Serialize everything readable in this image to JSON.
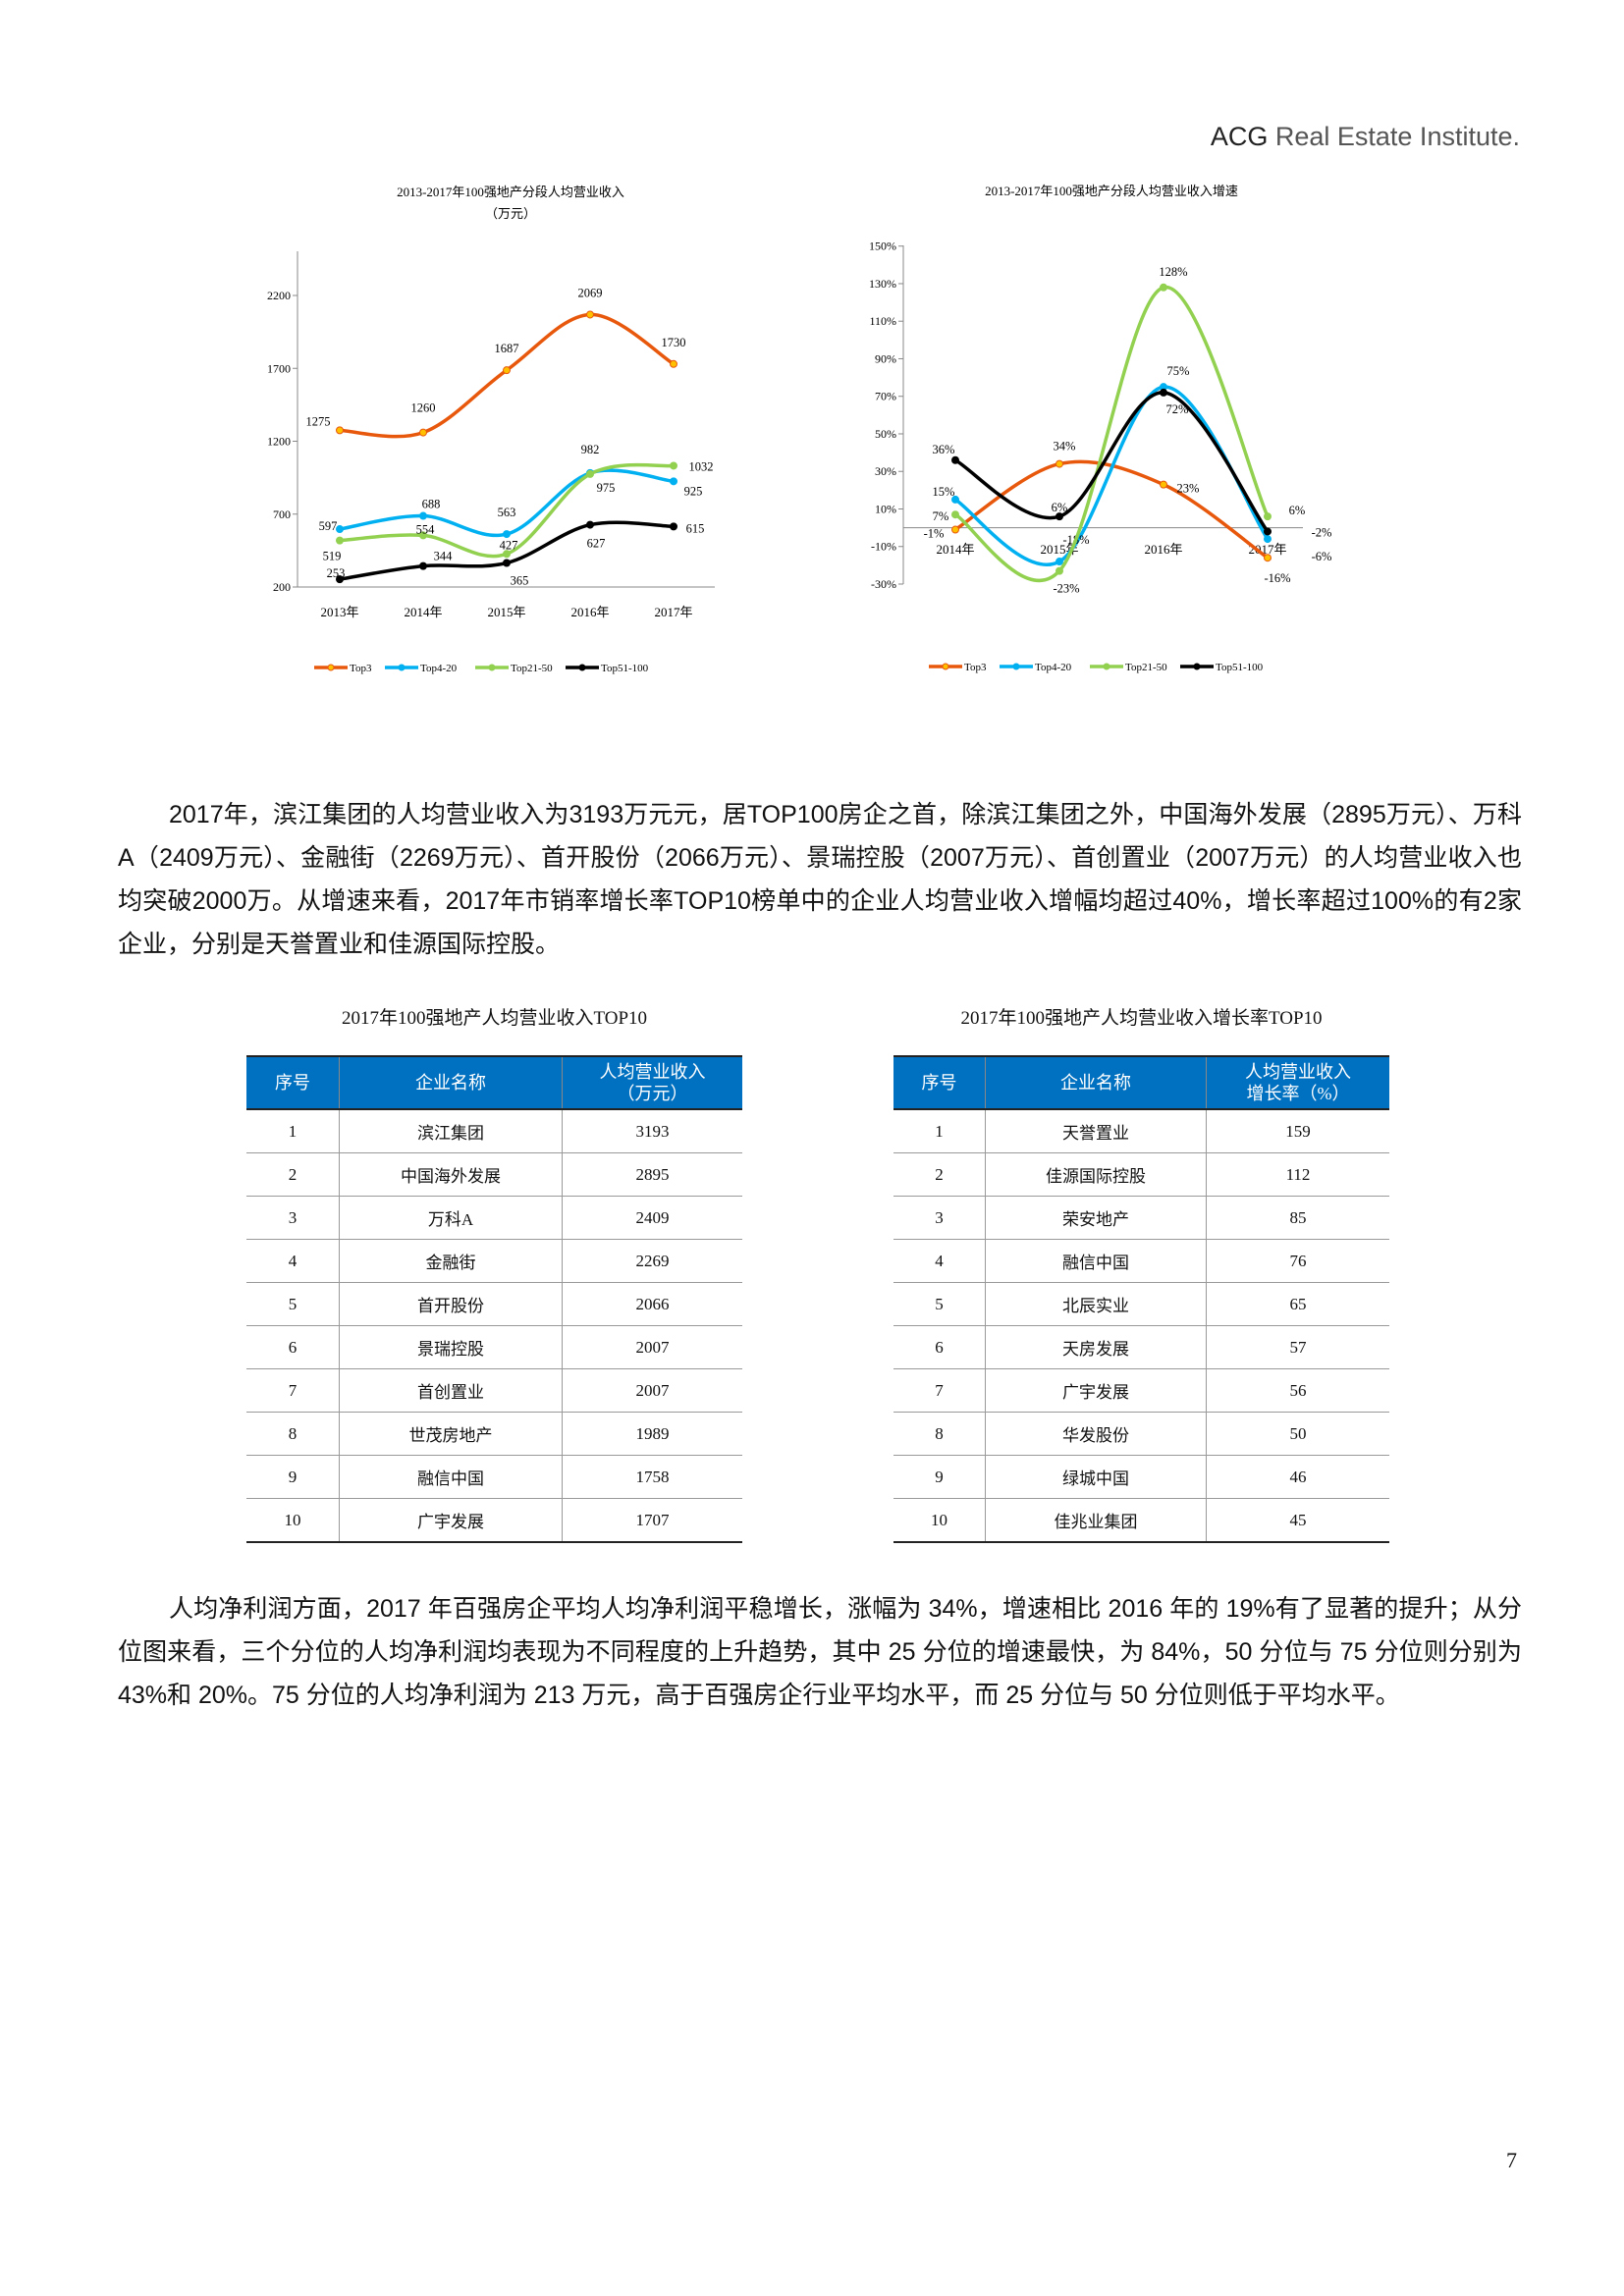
{
  "header": {
    "brand": "ACG",
    "rest": " Real Estate Institute."
  },
  "chart_data": [
    {
      "type": "line",
      "title": "2013-2017年100强地产分段人均营业收入",
      "subtitle": "（万元）",
      "categories": [
        "2013年",
        "2014年",
        "2015年",
        "2016年",
        "2017年"
      ],
      "ylim": [
        200,
        2500
      ],
      "yticks": [
        "200",
        "700",
        "1200",
        "1700",
        "2200"
      ],
      "ytick_values": [
        200,
        700,
        1200,
        1700,
        2200
      ],
      "legend_position": "bottom",
      "series": [
        {
          "name": "Top3",
          "color": "#e8580c",
          "values": [
            1275,
            1260,
            1687,
            2069,
            1730
          ]
        },
        {
          "name": "Top4-20",
          "color": "#00b0f0",
          "values": [
            597,
            688,
            563,
            982,
            925
          ]
        },
        {
          "name": "Top21-50",
          "color": "#92d050",
          "values": [
            519,
            554,
            427,
            975,
            1032
          ]
        },
        {
          "name": "Top51-100",
          "color": "#000000",
          "values": [
            253,
            344,
            365,
            627,
            615
          ]
        }
      ]
    },
    {
      "type": "line",
      "title": "2013-2017年100强地产分段人均营业收入增速",
      "categories": [
        "2014年",
        "2015年",
        "2016年",
        "2017年"
      ],
      "ylim": [
        -30,
        150
      ],
      "yticks": [
        "150%",
        "130%",
        "110%",
        "90%",
        "70%",
        "50%",
        "30%",
        "10%",
        "-10%",
        "-30%"
      ],
      "ytick_values": [
        150,
        130,
        110,
        90,
        70,
        50,
        30,
        10,
        -10,
        -30
      ],
      "unit": "%",
      "legend_position": "bottom",
      "series": [
        {
          "name": "Top3",
          "color": "#e8580c",
          "values": [
            -1,
            34,
            23,
            -16
          ]
        },
        {
          "name": "Top4-20",
          "color": "#00b0f0",
          "values": [
            15,
            -18,
            75,
            -6
          ]
        },
        {
          "name": "Top21-50",
          "color": "#92d050",
          "values": [
            7,
            -23,
            128,
            6
          ]
        },
        {
          "name": "Top51-100",
          "color": "#000000",
          "values": [
            36,
            6,
            72,
            -2
          ]
        }
      ]
    }
  ],
  "paragraph1": "2017年，滨江集团的人均营业收入为3193万元元，居TOP100房企之首，除滨江集团之外，中国海外发展（2895万元）、万科A（2409万元）、金融街（2269万元）、首开股份（2066万元）、景瑞控股（2007万元）、首创置业（2007万元）的人均营业收入也均突破2000万。从增速来看，2017年市销率增长率TOP10榜单中的企业人均营业收入增幅均超过40%，增长率超过100%的有2家企业，分别是天誉置业和佳源国际控股。",
  "table1": {
    "title": "2017年100强地产人均营业收入TOP10",
    "headers": [
      "序号",
      "企业名称",
      "人均营业收入",
      "（万元）"
    ],
    "rows": [
      [
        "1",
        "滨江集团",
        "3193"
      ],
      [
        "2",
        "中国海外发展",
        "2895"
      ],
      [
        "3",
        "万科A",
        "2409"
      ],
      [
        "4",
        "金融街",
        "2269"
      ],
      [
        "5",
        "首开股份",
        "2066"
      ],
      [
        "6",
        "景瑞控股",
        "2007"
      ],
      [
        "7",
        "首创置业",
        "2007"
      ],
      [
        "8",
        "世茂房地产",
        "1989"
      ],
      [
        "9",
        "融信中国",
        "1758"
      ],
      [
        "10",
        "广宇发展",
        "1707"
      ]
    ]
  },
  "table2": {
    "title": "2017年100强地产人均营业收入增长率TOP10",
    "headers": [
      "序号",
      "企业名称",
      "人均营业收入",
      "增长率（%）"
    ],
    "rows": [
      [
        "1",
        "天誉置业",
        "159"
      ],
      [
        "2",
        "佳源国际控股",
        "112"
      ],
      [
        "3",
        "荣安地产",
        "85"
      ],
      [
        "4",
        "融信中国",
        "76"
      ],
      [
        "5",
        "北辰实业",
        "65"
      ],
      [
        "6",
        "天房发展",
        "57"
      ],
      [
        "7",
        "广宇发展",
        "56"
      ],
      [
        "8",
        "华发股份",
        "50"
      ],
      [
        "9",
        "绿城中国",
        "46"
      ],
      [
        "10",
        "佳兆业集团",
        "45"
      ]
    ]
  },
  "paragraph2": "人均净利润方面，2017 年百强房企平均人均净利润平稳增长，涨幅为 34%，增速相比 2016 年的 19%有了显著的提升；从分位图来看，三个分位的人均净利润均表现为不同程度的上升趋势，其中 25 分位的增速最快，为 84%，50 分位与 75 分位则分别为 43%和 20%。75 分位的人均净利润为 213 万元，高于百强房企行业平均水平，而 25 分位与 50 分位则低于平均水平。",
  "page_number": "7"
}
